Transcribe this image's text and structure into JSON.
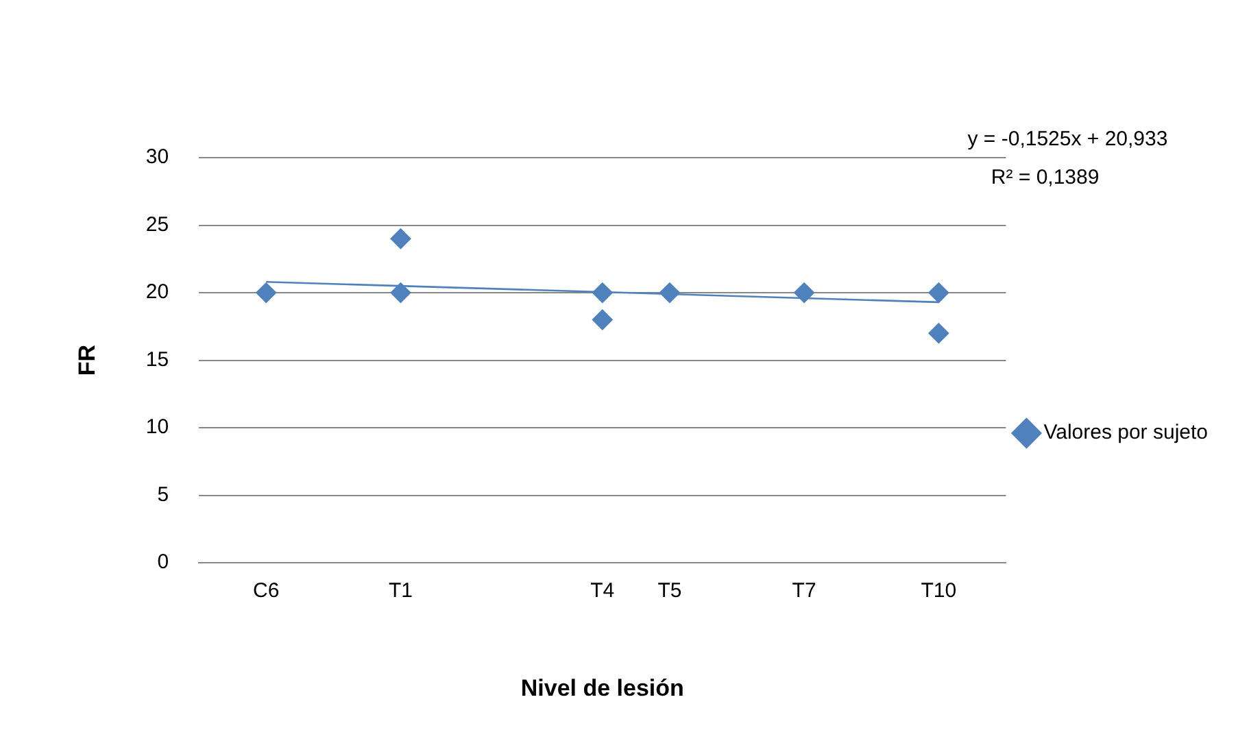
{
  "chart_data": {
    "type": "scatter",
    "xlabel": "Nivel de lesión",
    "ylabel": "FR",
    "categories": [
      null,
      "C6",
      null,
      "T1",
      null,
      null,
      "T4",
      "T5",
      null,
      "T7",
      null,
      "T10",
      null
    ],
    "ylim": [
      0,
      30
    ],
    "yticks": [
      0,
      5,
      10,
      15,
      20,
      25,
      30
    ],
    "grid": "y",
    "legend": "right",
    "annotations": [
      "y = -0,1525x + 20,933",
      "R² = 0,1389"
    ],
    "series": [
      {
        "name": "Valores por sujeto",
        "marker": "diamond",
        "color": "#4f81bd",
        "x": [
          "C6",
          "T1",
          "T1",
          "T4",
          "T4",
          "T5",
          "T7",
          "T10",
          "T10"
        ],
        "values": [
          20,
          24,
          20,
          20,
          18,
          20,
          20,
          20,
          17
        ]
      },
      {
        "type": "line",
        "marker": "none",
        "color": "#4f81bd",
        "x": [
          "C6",
          "T10"
        ],
        "values": [
          20.8,
          19.3
        ]
      }
    ]
  }
}
